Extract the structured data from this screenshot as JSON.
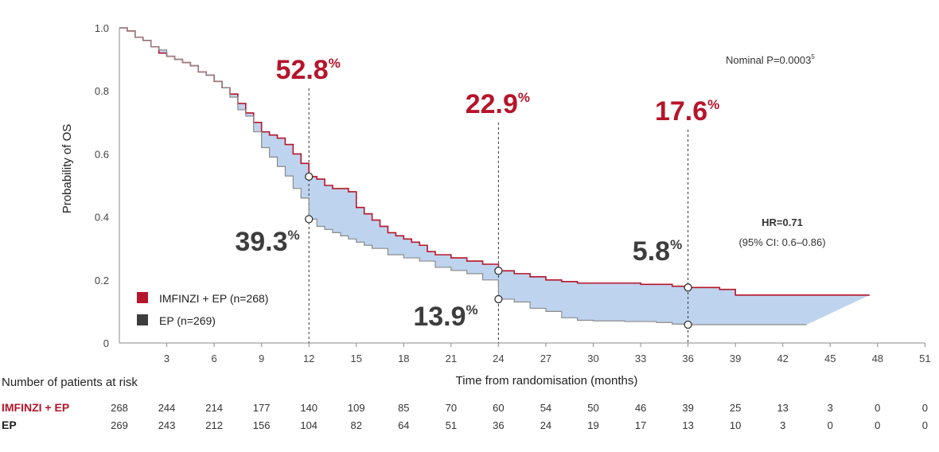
{
  "chart_data": {
    "type": "line",
    "title": "",
    "xlabel": "Time from randomisation (months)",
    "ylabel": "Probability of OS",
    "xlim": [
      0,
      51
    ],
    "ylim": [
      0,
      1.0
    ],
    "x_ticks": [
      3,
      6,
      9,
      12,
      15,
      18,
      21,
      24,
      27,
      30,
      33,
      36,
      39,
      42,
      45,
      48,
      51
    ],
    "y_ticks": [
      {
        "value": 0,
        "label": "0"
      },
      {
        "value": 0.2,
        "label": "0.2"
      },
      {
        "value": 0.4,
        "label": "0.4"
      },
      {
        "value": 0.6,
        "label": "0.6"
      },
      {
        "value": 0.8,
        "label": "0.8"
      },
      {
        "value": 1.0,
        "label": "1.0"
      }
    ],
    "series": [
      {
        "name": "IMFINZI + EP (n=268)",
        "color": "#b5152b",
        "points": [
          [
            0,
            1.0
          ],
          [
            0.5,
            0.99
          ],
          [
            1,
            0.97
          ],
          [
            1.5,
            0.96
          ],
          [
            2,
            0.94
          ],
          [
            2.5,
            0.92
          ],
          [
            3,
            0.91
          ],
          [
            3.5,
            0.9
          ],
          [
            4,
            0.89
          ],
          [
            4.5,
            0.88
          ],
          [
            5,
            0.86
          ],
          [
            5.5,
            0.85
          ],
          [
            6,
            0.83
          ],
          [
            6.5,
            0.81
          ],
          [
            7,
            0.79
          ],
          [
            7.5,
            0.76
          ],
          [
            8,
            0.73
          ],
          [
            8.5,
            0.7
          ],
          [
            9,
            0.67
          ],
          [
            9.5,
            0.66
          ],
          [
            10,
            0.65
          ],
          [
            10.5,
            0.63
          ],
          [
            11,
            0.6
          ],
          [
            11.5,
            0.57
          ],
          [
            12,
            0.528
          ],
          [
            12.5,
            0.52
          ],
          [
            13,
            0.5
          ],
          [
            13.5,
            0.49
          ],
          [
            14,
            0.49
          ],
          [
            14.5,
            0.48
          ],
          [
            15,
            0.43
          ],
          [
            15.5,
            0.41
          ],
          [
            16,
            0.39
          ],
          [
            16.5,
            0.37
          ],
          [
            17,
            0.35
          ],
          [
            17.5,
            0.34
          ],
          [
            18,
            0.33
          ],
          [
            18.5,
            0.32
          ],
          [
            19,
            0.31
          ],
          [
            19.5,
            0.29
          ],
          [
            20,
            0.28
          ],
          [
            21,
            0.27
          ],
          [
            22,
            0.26
          ],
          [
            23,
            0.25
          ],
          [
            24,
            0.229
          ],
          [
            25,
            0.22
          ],
          [
            26,
            0.21
          ],
          [
            27,
            0.2
          ],
          [
            28,
            0.195
          ],
          [
            29,
            0.19
          ],
          [
            30,
            0.19
          ],
          [
            33,
            0.186
          ],
          [
            35,
            0.18
          ],
          [
            36,
            0.176
          ],
          [
            37,
            0.176
          ],
          [
            38,
            0.17
          ],
          [
            39,
            0.152
          ],
          [
            42,
            0.152
          ],
          [
            45,
            0.152
          ],
          [
            47.5,
            0.152
          ]
        ]
      },
      {
        "name": "EP (n=269)",
        "color": "#8c8c8c",
        "points": [
          [
            0,
            1.0
          ],
          [
            0.5,
            0.99
          ],
          [
            1,
            0.97
          ],
          [
            1.5,
            0.96
          ],
          [
            2,
            0.94
          ],
          [
            2.5,
            0.93
          ],
          [
            3,
            0.91
          ],
          [
            3.5,
            0.9
          ],
          [
            4,
            0.89
          ],
          [
            4.5,
            0.88
          ],
          [
            5,
            0.86
          ],
          [
            5.5,
            0.85
          ],
          [
            6,
            0.83
          ],
          [
            6.5,
            0.81
          ],
          [
            7,
            0.78
          ],
          [
            7.5,
            0.74
          ],
          [
            8,
            0.72
          ],
          [
            8.5,
            0.67
          ],
          [
            9,
            0.62
          ],
          [
            9.5,
            0.59
          ],
          [
            10,
            0.56
          ],
          [
            10.5,
            0.53
          ],
          [
            11,
            0.49
          ],
          [
            11.5,
            0.46
          ],
          [
            12,
            0.393
          ],
          [
            12.5,
            0.37
          ],
          [
            13,
            0.36
          ],
          [
            13.5,
            0.35
          ],
          [
            14,
            0.34
          ],
          [
            14.5,
            0.33
          ],
          [
            15,
            0.32
          ],
          [
            15.5,
            0.31
          ],
          [
            16,
            0.3
          ],
          [
            16.5,
            0.3
          ],
          [
            17,
            0.28
          ],
          [
            18,
            0.27
          ],
          [
            19,
            0.26
          ],
          [
            20,
            0.24
          ],
          [
            21,
            0.23
          ],
          [
            22,
            0.22
          ],
          [
            23,
            0.2
          ],
          [
            24,
            0.139
          ],
          [
            25,
            0.13
          ],
          [
            26,
            0.11
          ],
          [
            27,
            0.1
          ],
          [
            28,
            0.08
          ],
          [
            29,
            0.072
          ],
          [
            30,
            0.07
          ],
          [
            32,
            0.068
          ],
          [
            34,
            0.065
          ],
          [
            35,
            0.06
          ],
          [
            36,
            0.058
          ],
          [
            38,
            0.058
          ],
          [
            40,
            0.058
          ],
          [
            42,
            0.058
          ],
          [
            43.5,
            0.058
          ]
        ]
      }
    ],
    "annotations": {
      "imfinzi": [
        {
          "month": 12,
          "y": 0.528,
          "label": "52.8"
        },
        {
          "month": 24,
          "y": 0.229,
          "label": "22.9"
        },
        {
          "month": 36,
          "y": 0.176,
          "label": "17.6"
        }
      ],
      "ep": [
        {
          "month": 12,
          "y": 0.393,
          "label": "39.3"
        },
        {
          "month": 24,
          "y": 0.139,
          "label": "13.9"
        },
        {
          "month": 36,
          "y": 0.058,
          "label": "5.8"
        }
      ],
      "percent_sign": "%"
    },
    "p_value": "Nominal P=0.0003",
    "p_value_ref": "5",
    "hr_label": "HR=0.71",
    "hr_ci": "(95% CI: 0.6–0.86)",
    "legend": {
      "placement": "bottom-left",
      "items": [
        {
          "label": "IMFINZI + EP (n=268)",
          "color": "#b5152b"
        },
        {
          "label": "EP (n=269)",
          "color": "#3d3d3d"
        }
      ]
    },
    "shading_color": "#bed3ee",
    "grid": false
  },
  "risk_table": {
    "heading": "Number of patients at risk",
    "rows": [
      {
        "label": "IMFINZI + EP",
        "color": "#b5152b",
        "values": [
          "268",
          "244",
          "214",
          "177",
          "140",
          "109",
          "85",
          "70",
          "60",
          "54",
          "50",
          "46",
          "39",
          "25",
          "13",
          "3",
          "0",
          "0"
        ]
      },
      {
        "label": "EP",
        "color": "#222222",
        "values": [
          "269",
          "243",
          "212",
          "156",
          "104",
          "82",
          "64",
          "51",
          "36",
          "24",
          "19",
          "17",
          "13",
          "10",
          "3",
          "0",
          "0",
          "0"
        ]
      }
    ]
  }
}
